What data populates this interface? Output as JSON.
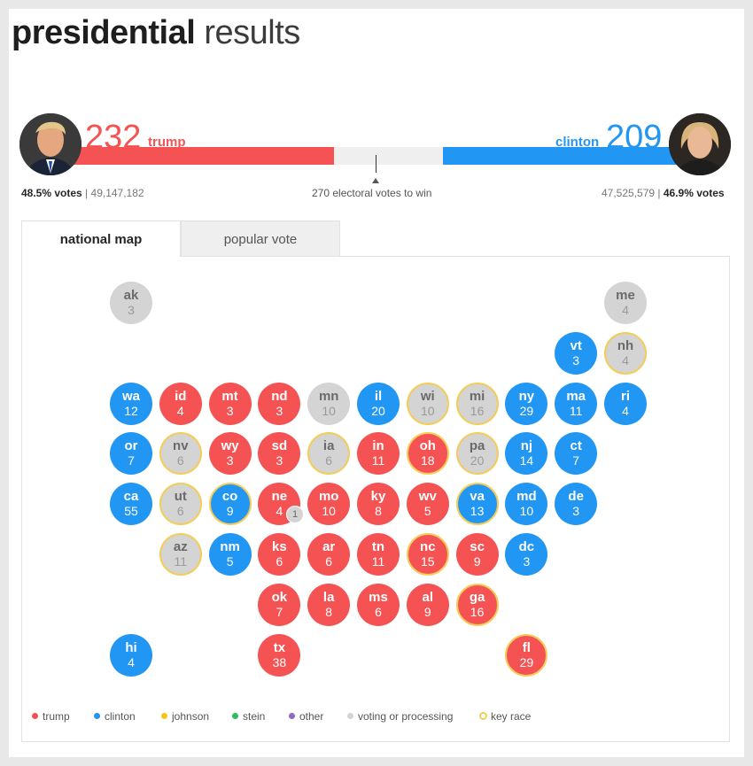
{
  "header": {
    "title_bold": "presidential",
    "title_light": "results"
  },
  "colors": {
    "trump": "#f55353",
    "clinton": "#2196f3",
    "gray": "#d4d4d4",
    "key": "#f3cd5a"
  },
  "candidates": {
    "trump": {
      "name": "trump",
      "electoral": "232",
      "pct": "48.5% votes",
      "votes": "49,147,182",
      "avatar_icon": "trump-photo"
    },
    "clinton": {
      "name": "clinton",
      "electoral": "209",
      "pct": "46.9% votes",
      "votes": "47,525,579",
      "avatar_icon": "clinton-photo"
    }
  },
  "progress": {
    "total": 538,
    "to_win": "270 electoral votes to win",
    "threshold": 270
  },
  "tabs": [
    {
      "label": "national map",
      "active": true
    },
    {
      "label": "popular vote",
      "active": false
    }
  ],
  "states": [
    {
      "ab": "ak",
      "ev": "3",
      "w": "g",
      "k": false,
      "r": 0,
      "c": 0
    },
    {
      "ab": "me",
      "ev": "4",
      "w": "g",
      "k": false,
      "r": 0,
      "c": 10
    },
    {
      "ab": "vt",
      "ev": "3",
      "w": "d",
      "k": false,
      "r": 1,
      "c": 9
    },
    {
      "ab": "nh",
      "ev": "4",
      "w": "g",
      "k": true,
      "r": 1,
      "c": 10
    },
    {
      "ab": "wa",
      "ev": "12",
      "w": "d",
      "k": false,
      "r": 2,
      "c": 0
    },
    {
      "ab": "id",
      "ev": "4",
      "w": "r",
      "k": false,
      "r": 2,
      "c": 1
    },
    {
      "ab": "mt",
      "ev": "3",
      "w": "r",
      "k": false,
      "r": 2,
      "c": 2
    },
    {
      "ab": "nd",
      "ev": "3",
      "w": "r",
      "k": false,
      "r": 2,
      "c": 3
    },
    {
      "ab": "mn",
      "ev": "10",
      "w": "g",
      "k": false,
      "r": 2,
      "c": 4
    },
    {
      "ab": "il",
      "ev": "20",
      "w": "d",
      "k": false,
      "r": 2,
      "c": 5
    },
    {
      "ab": "wi",
      "ev": "10",
      "w": "g",
      "k": true,
      "r": 2,
      "c": 6
    },
    {
      "ab": "mi",
      "ev": "16",
      "w": "g",
      "k": true,
      "r": 2,
      "c": 7
    },
    {
      "ab": "ny",
      "ev": "29",
      "w": "d",
      "k": false,
      "r": 2,
      "c": 8
    },
    {
      "ab": "ma",
      "ev": "11",
      "w": "d",
      "k": false,
      "r": 2,
      "c": 9
    },
    {
      "ab": "ri",
      "ev": "4",
      "w": "d",
      "k": false,
      "r": 2,
      "c": 10
    },
    {
      "ab": "or",
      "ev": "7",
      "w": "d",
      "k": false,
      "r": 3,
      "c": 0
    },
    {
      "ab": "nv",
      "ev": "6",
      "w": "g",
      "k": true,
      "r": 3,
      "c": 1
    },
    {
      "ab": "wy",
      "ev": "3",
      "w": "r",
      "k": false,
      "r": 3,
      "c": 2
    },
    {
      "ab": "sd",
      "ev": "3",
      "w": "r",
      "k": false,
      "r": 3,
      "c": 3
    },
    {
      "ab": "ia",
      "ev": "6",
      "w": "g",
      "k": true,
      "r": 3,
      "c": 4
    },
    {
      "ab": "in",
      "ev": "11",
      "w": "r",
      "k": false,
      "r": 3,
      "c": 5
    },
    {
      "ab": "oh",
      "ev": "18",
      "w": "r",
      "k": true,
      "r": 3,
      "c": 6
    },
    {
      "ab": "pa",
      "ev": "20",
      "w": "g",
      "k": true,
      "r": 3,
      "c": 7
    },
    {
      "ab": "nj",
      "ev": "14",
      "w": "d",
      "k": false,
      "r": 3,
      "c": 8
    },
    {
      "ab": "ct",
      "ev": "7",
      "w": "d",
      "k": false,
      "r": 3,
      "c": 9
    },
    {
      "ab": "ca",
      "ev": "55",
      "w": "d",
      "k": false,
      "r": 4,
      "c": 0
    },
    {
      "ab": "ut",
      "ev": "6",
      "w": "g",
      "k": true,
      "r": 4,
      "c": 1
    },
    {
      "ab": "co",
      "ev": "9",
      "w": "d",
      "k": true,
      "r": 4,
      "c": 2
    },
    {
      "ab": "ne",
      "ev": "4",
      "w": "r",
      "k": false,
      "r": 4,
      "c": 3
    },
    {
      "ab": "mo",
      "ev": "10",
      "w": "r",
      "k": false,
      "r": 4,
      "c": 4
    },
    {
      "ab": "ky",
      "ev": "8",
      "w": "r",
      "k": false,
      "r": 4,
      "c": 5
    },
    {
      "ab": "wv",
      "ev": "5",
      "w": "r",
      "k": false,
      "r": 4,
      "c": 6
    },
    {
      "ab": "va",
      "ev": "13",
      "w": "d",
      "k": true,
      "r": 4,
      "c": 7
    },
    {
      "ab": "md",
      "ev": "10",
      "w": "d",
      "k": false,
      "r": 4,
      "c": 8
    },
    {
      "ab": "de",
      "ev": "3",
      "w": "d",
      "k": false,
      "r": 4,
      "c": 9
    },
    {
      "ab": "az",
      "ev": "11",
      "w": "g",
      "k": true,
      "r": 5,
      "c": 1
    },
    {
      "ab": "nm",
      "ev": "5",
      "w": "d",
      "k": false,
      "r": 5,
      "c": 2
    },
    {
      "ab": "ks",
      "ev": "6",
      "w": "r",
      "k": false,
      "r": 5,
      "c": 3
    },
    {
      "ab": "ar",
      "ev": "6",
      "w": "r",
      "k": false,
      "r": 5,
      "c": 4
    },
    {
      "ab": "tn",
      "ev": "11",
      "w": "r",
      "k": false,
      "r": 5,
      "c": 5
    },
    {
      "ab": "nc",
      "ev": "15",
      "w": "r",
      "k": true,
      "r": 5,
      "c": 6
    },
    {
      "ab": "sc",
      "ev": "9",
      "w": "r",
      "k": false,
      "r": 5,
      "c": 7
    },
    {
      "ab": "dc",
      "ev": "3",
      "w": "d",
      "k": false,
      "r": 5,
      "c": 8
    },
    {
      "ab": "ok",
      "ev": "7",
      "w": "r",
      "k": false,
      "r": 6,
      "c": 3
    },
    {
      "ab": "la",
      "ev": "8",
      "w": "r",
      "k": false,
      "r": 6,
      "c": 4
    },
    {
      "ab": "ms",
      "ev": "6",
      "w": "r",
      "k": false,
      "r": 6,
      "c": 5
    },
    {
      "ab": "al",
      "ev": "9",
      "w": "r",
      "k": false,
      "r": 6,
      "c": 6
    },
    {
      "ab": "ga",
      "ev": "16",
      "w": "r",
      "k": true,
      "r": 6,
      "c": 7
    },
    {
      "ab": "hi",
      "ev": "4",
      "w": "d",
      "k": false,
      "r": 7,
      "c": 0
    },
    {
      "ab": "tx",
      "ev": "38",
      "w": "r",
      "k": false,
      "r": 7,
      "c": 3
    },
    {
      "ab": "fl",
      "ev": "29",
      "w": "r",
      "k": true,
      "r": 7,
      "c": 8
    }
  ],
  "ne_badge": "1",
  "legend": [
    {
      "label": "trump",
      "color": "#f55353",
      "type": "dot"
    },
    {
      "label": "clinton",
      "color": "#2196f3",
      "type": "dot"
    },
    {
      "label": "johnson",
      "color": "#f5c518",
      "type": "dot"
    },
    {
      "label": "stein",
      "color": "#2ebd59",
      "type": "dot"
    },
    {
      "label": "other",
      "color": "#8e6bbf",
      "type": "dot"
    },
    {
      "label": "voting or processing",
      "color": "#d4d4d4",
      "type": "dot"
    },
    {
      "label": "key race",
      "color": "#f3cd5a",
      "type": "ring"
    }
  ]
}
